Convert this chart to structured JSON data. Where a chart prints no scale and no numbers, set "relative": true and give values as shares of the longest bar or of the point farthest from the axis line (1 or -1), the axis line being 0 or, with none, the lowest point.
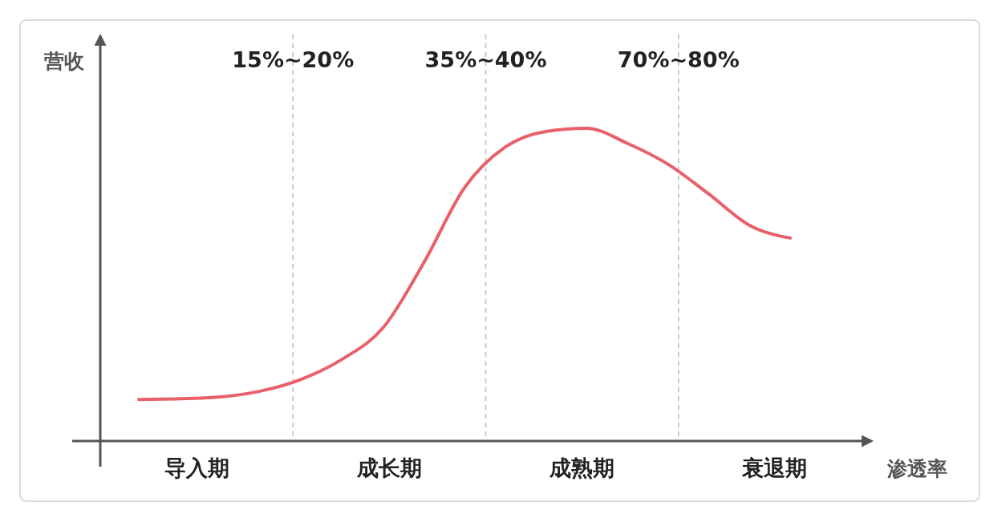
{
  "chart_data": {
    "type": "line",
    "relative": true,
    "ylabel": "营收",
    "xlabel": "渗透率",
    "categories": [
      null,
      null,
      null,
      null,
      null,
      null,
      null,
      null,
      null,
      null,
      null,
      null,
      null,
      null,
      null,
      null,
      null
    ],
    "series": [
      {
        "color": "#e8606a",
        "values": [
          0.133,
          0.135,
          0.141,
          0.16,
          0.198,
          0.262,
          0.362,
          0.57,
          0.81,
          0.94,
          0.99,
          1,
          0.952,
          0.885,
          0.79,
          0.69,
          0.649
        ]
      }
    ],
    "annotations": [
      "15%~20%",
      "35%~40%",
      "70%~80%",
      "导入期",
      "成长期",
      "成熟期",
      "衰退期"
    ],
    "marker": "none",
    "line_style": "solid"
  }
}
